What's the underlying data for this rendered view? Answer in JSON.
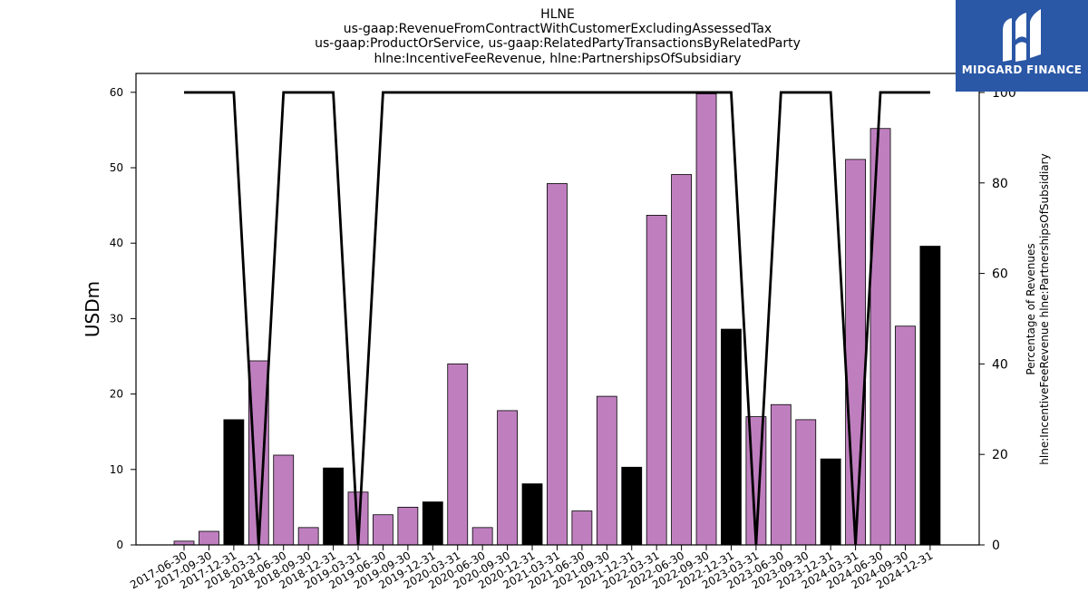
{
  "chart_data": {
    "type": "bar",
    "title_lines": [
      "HLNE",
      "us-gaap:RevenueFromContractWithCustomerExcludingAssessedTax",
      "us-gaap:ProductOrService, us-gaap:RelatedPartyTransactionsByRelatedParty",
      "hlne:IncentiveFeeRevenue, hlne:PartnershipsOfSubsidiary"
    ],
    "ylabel": "USDm",
    "ylabel_right_lines": [
      "Percentage of Revenues",
      "hlne:IncentiveFeeRevenue hlne:PartnershipsOfSubsidiary"
    ],
    "ylim": [
      0,
      62.5
    ],
    "yticks": [
      0,
      10,
      20,
      30,
      40,
      50,
      60
    ],
    "ylim_right": [
      0,
      104.2
    ],
    "yticks_right": [
      0,
      20,
      40,
      60,
      80,
      100
    ],
    "grid": false,
    "bar_colors": {
      "quarter": "#bf7fbf",
      "year_end": "#000000"
    },
    "line_color": "#000000",
    "categories": [
      "2017-06-30",
      "2017-09-30",
      "2017-12-31",
      "2018-03-31",
      "2018-06-30",
      "2018-09-30",
      "2018-12-31",
      "2019-03-31",
      "2019-06-30",
      "2019-09-30",
      "2019-12-31",
      "2020-03-31",
      "2020-06-30",
      "2020-09-30",
      "2020-12-31",
      "2021-03-31",
      "2021-06-30",
      "2021-09-30",
      "2021-12-31",
      "2022-03-31",
      "2022-06-30",
      "2022-09-30",
      "2022-12-31",
      "2023-03-31",
      "2023-06-30",
      "2023-09-30",
      "2023-12-31",
      "2024-03-31",
      "2024-06-30",
      "2024-09-30",
      "2024-12-31"
    ],
    "series": [
      {
        "type": "bar",
        "values": [
          0.5,
          1.8,
          16.6,
          24.4,
          11.9,
          2.3,
          10.2,
          7.0,
          4.0,
          5.0,
          5.7,
          24.0,
          2.3,
          17.8,
          8.1,
          47.9,
          4.5,
          19.7,
          10.3,
          43.7,
          49.1,
          59.8,
          28.6,
          17.0,
          18.6,
          16.6,
          11.4,
          51.1,
          55.2,
          29.0,
          39.6
        ],
        "year_end": [
          false,
          false,
          true,
          false,
          false,
          false,
          true,
          false,
          false,
          false,
          true,
          false,
          false,
          false,
          true,
          false,
          false,
          false,
          true,
          false,
          false,
          false,
          true,
          false,
          false,
          false,
          true,
          false,
          false,
          false,
          true
        ]
      },
      {
        "type": "line",
        "axis": "right",
        "values": [
          100,
          100,
          100,
          0,
          100,
          100,
          100,
          0,
          100,
          100,
          100,
          100,
          100,
          100,
          100,
          100,
          100,
          100,
          100,
          100,
          100,
          100,
          100,
          0,
          100,
          100,
          100,
          0,
          100,
          100,
          100
        ]
      }
    ]
  },
  "logo": {
    "text": "MIDGARD FINANCE",
    "color": "#2a57a6"
  }
}
